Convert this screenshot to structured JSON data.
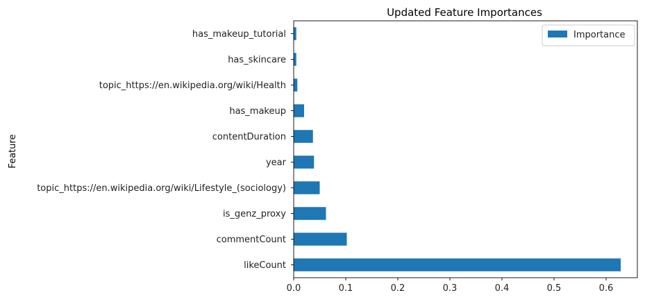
{
  "chart_data": {
    "type": "bar",
    "orientation": "horizontal",
    "title": "Updated Feature Importances",
    "xlabel": "",
    "ylabel": "Feature",
    "xlim": [
      0,
      0.66
    ],
    "xticks": [
      0.0,
      0.1,
      0.2,
      0.3,
      0.4,
      0.5,
      0.6
    ],
    "xtick_labels": [
      "0.0",
      "0.1",
      "0.2",
      "0.3",
      "0.4",
      "0.5",
      "0.6"
    ],
    "grid": false,
    "legend_position": "top-right",
    "categories": [
      "likeCount",
      "commentCount",
      "is_genz_proxy",
      "topic_https://en.wikipedia.org/wiki/Lifestyle_(sociology)",
      "year",
      "contentDuration",
      "has_makeup",
      "topic_https://en.wikipedia.org/wiki/Health",
      "has_skincare",
      "has_makeup_tutorial"
    ],
    "series": [
      {
        "name": "Importance",
        "color": "#1f77b4",
        "values": [
          0.628,
          0.102,
          0.062,
          0.05,
          0.039,
          0.037,
          0.02,
          0.007,
          0.005,
          0.005
        ]
      }
    ]
  }
}
